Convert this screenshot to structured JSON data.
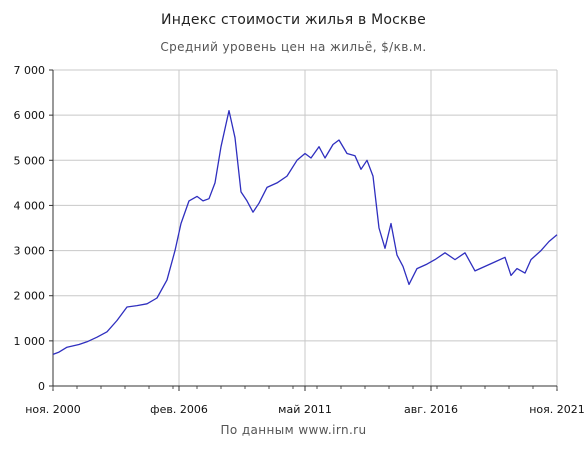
{
  "chart_data": {
    "type": "line",
    "title": "Индекс стоимости жилья в Москве",
    "subtitle": "Средний уровень цен на жильё, $/кв.м.",
    "source": "По данным www.irn.ru",
    "xlabel": "",
    "ylabel": "",
    "ylim": [
      0,
      7000
    ],
    "xlim": [
      "2000-11",
      "2021-11"
    ],
    "yticks": [
      {
        "value": 0,
        "label": "0"
      },
      {
        "value": 1000,
        "label": "1 000"
      },
      {
        "value": 2000,
        "label": "2 000"
      },
      {
        "value": 3000,
        "label": "3 000"
      },
      {
        "value": 4000,
        "label": "4 000"
      },
      {
        "value": 5000,
        "label": "5 000"
      },
      {
        "value": 6000,
        "label": "6 000"
      },
      {
        "value": 7000,
        "label": "7 000"
      }
    ],
    "xticks": [
      {
        "date": "2000-11",
        "label": "ноя. 2000"
      },
      {
        "date": "2006-02",
        "label": "фев. 2006"
      },
      {
        "date": "2011-05",
        "label": "май 2011"
      },
      {
        "date": "2016-08",
        "label": "авг. 2016"
      },
      {
        "date": "2021-11",
        "label": "ноя. 2021"
      }
    ],
    "grid": true,
    "series": [
      {
        "color": "#2f2fbf",
        "points": [
          [
            "2000-11",
            700
          ],
          [
            "2001-02",
            750
          ],
          [
            "2001-06",
            860
          ],
          [
            "2001-12",
            920
          ],
          [
            "2002-04",
            980
          ],
          [
            "2002-09",
            1080
          ],
          [
            "2003-02",
            1200
          ],
          [
            "2003-07",
            1450
          ],
          [
            "2003-12",
            1750
          ],
          [
            "2004-05",
            1780
          ],
          [
            "2004-10",
            1820
          ],
          [
            "2005-03",
            1950
          ],
          [
            "2005-08",
            2350
          ],
          [
            "2005-12",
            3000
          ],
          [
            "2006-03",
            3600
          ],
          [
            "2006-07",
            4100
          ],
          [
            "2006-11",
            4200
          ],
          [
            "2007-02",
            4100
          ],
          [
            "2007-05",
            4150
          ],
          [
            "2007-08",
            4500
          ],
          [
            "2007-11",
            5300
          ],
          [
            "2008-03",
            6100
          ],
          [
            "2008-06",
            5500
          ],
          [
            "2008-09",
            4300
          ],
          [
            "2008-12",
            4100
          ],
          [
            "2009-03",
            3850
          ],
          [
            "2009-06",
            4050
          ],
          [
            "2009-10",
            4400
          ],
          [
            "2010-03",
            4500
          ],
          [
            "2010-08",
            4650
          ],
          [
            "2011-01",
            5000
          ],
          [
            "2011-05",
            5150
          ],
          [
            "2011-08",
            5050
          ],
          [
            "2011-12",
            5300
          ],
          [
            "2012-03",
            5050
          ],
          [
            "2012-07",
            5350
          ],
          [
            "2012-10",
            5450
          ],
          [
            "2013-02",
            5150
          ],
          [
            "2013-06",
            5100
          ],
          [
            "2013-09",
            4800
          ],
          [
            "2013-12",
            5000
          ],
          [
            "2014-03",
            4650
          ],
          [
            "2014-06",
            3500
          ],
          [
            "2014-09",
            3050
          ],
          [
            "2014-12",
            3600
          ],
          [
            "2015-03",
            2900
          ],
          [
            "2015-06",
            2650
          ],
          [
            "2015-09",
            2250
          ],
          [
            "2016-01",
            2600
          ],
          [
            "2016-06",
            2700
          ],
          [
            "2016-10",
            2800
          ],
          [
            "2017-03",
            2950
          ],
          [
            "2017-08",
            2800
          ],
          [
            "2018-01",
            2950
          ],
          [
            "2018-06",
            2550
          ],
          [
            "2018-11",
            2650
          ],
          [
            "2019-04",
            2750
          ],
          [
            "2019-09",
            2850
          ],
          [
            "2019-12",
            2450
          ],
          [
            "2020-03",
            2600
          ],
          [
            "2020-07",
            2500
          ],
          [
            "2020-10",
            2800
          ],
          [
            "2021-03",
            3000
          ],
          [
            "2021-07",
            3200
          ],
          [
            "2021-11",
            3350
          ]
        ]
      }
    ]
  }
}
